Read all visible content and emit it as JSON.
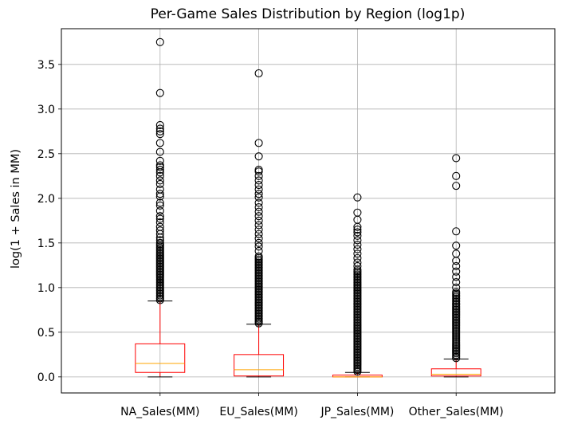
{
  "chart_data": {
    "type": "boxplot",
    "title": "Per-Game Sales Distribution by Region (log1p)",
    "xlabel": "",
    "ylabel": "log(1 + Sales in MM)",
    "ylim": [
      -0.18,
      3.9
    ],
    "yticks": [
      0.0,
      0.5,
      1.0,
      1.5,
      2.0,
      2.5,
      3.0,
      3.5
    ],
    "ytick_labels": [
      "0.0",
      "0.5",
      "1.0",
      "1.5",
      "2.0",
      "2.5",
      "3.0",
      "3.5"
    ],
    "grid": true,
    "categories": [
      "NA_Sales(MM)",
      "EU_Sales(MM)",
      "JP_Sales(MM)",
      "Other_Sales(MM)"
    ],
    "boxes": [
      {
        "whisker_low": 0.0,
        "q1": 0.05,
        "median": 0.15,
        "q3": 0.37,
        "whisker_high": 0.85,
        "outlier_band": [
          0.86,
          1.5
        ],
        "outliers": [
          3.75,
          3.18,
          2.82,
          2.78,
          2.75,
          2.72,
          2.62,
          2.52,
          2.42,
          2.37,
          2.35,
          2.32,
          2.29,
          2.25,
          2.2,
          2.16,
          2.1,
          2.05,
          2.02,
          1.95,
          1.92,
          1.86,
          1.8,
          1.77,
          1.73,
          1.68,
          1.64,
          1.6,
          1.56,
          1.53
        ]
      },
      {
        "whisker_low": 0.0,
        "q1": 0.01,
        "median": 0.08,
        "q3": 0.25,
        "whisker_high": 0.59,
        "outlier_band": [
          0.6,
          1.35
        ],
        "outliers": [
          3.4,
          2.62,
          2.47,
          2.32,
          2.3,
          2.25,
          2.2,
          2.15,
          2.1,
          2.05,
          2.01,
          1.95,
          1.9,
          1.85,
          1.8,
          1.75,
          1.7,
          1.65,
          1.6,
          1.55,
          1.5,
          1.46,
          1.41
        ]
      },
      {
        "whisker_low": 0.0,
        "q1": 0.0,
        "median": 0.0,
        "q3": 0.02,
        "whisker_high": 0.05,
        "outlier_band": [
          0.06,
          1.2
        ],
        "outliers": [
          2.01,
          1.84,
          1.76,
          1.68,
          1.65,
          1.62,
          1.58,
          1.53,
          1.48,
          1.43,
          1.38,
          1.33,
          1.28,
          1.24
        ]
      },
      {
        "whisker_low": 0.0,
        "q1": 0.01,
        "median": 0.03,
        "q3": 0.09,
        "whisker_high": 0.2,
        "outlier_band": [
          0.21,
          0.95
        ],
        "outliers": [
          2.45,
          2.25,
          2.14,
          1.63,
          1.47,
          1.38,
          1.3,
          1.24,
          1.18,
          1.12,
          1.06,
          1.0
        ]
      }
    ],
    "colors": {
      "box": "#ff0000",
      "median": "#ffa500",
      "whisker_cap": "#000000",
      "outlier": "#000000",
      "grid": "#b0b0b0",
      "axes": "#000000"
    }
  }
}
